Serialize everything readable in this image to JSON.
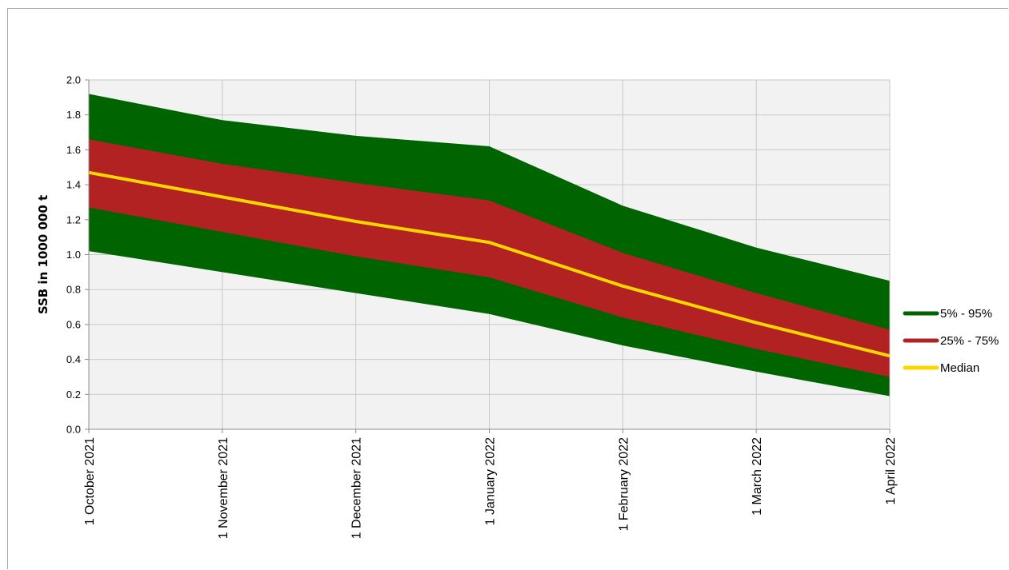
{
  "chart_data": {
    "type": "area",
    "title": "",
    "xlabel": "",
    "ylabel": "SSB in 1000 000 t",
    "ylim": [
      0,
      2.0
    ],
    "yticks": [
      "0.0",
      "0.2",
      "0.4",
      "0.6",
      "0.8",
      "1.0",
      "1.2",
      "1.4",
      "1.6",
      "1.8",
      "2.0"
    ],
    "categories": [
      "1 October 2021",
      "1 November 2021",
      "1 December 2021",
      "1 January 2022",
      "1 February 2022",
      "1 March 2022",
      "1 April 2022"
    ],
    "grid": true,
    "legend_position": "right",
    "series": [
      {
        "name": "5% - 95%",
        "color": "#006400",
        "lower": [
          1.02,
          0.9,
          0.78,
          0.66,
          0.48,
          0.33,
          0.19
        ],
        "upper": [
          1.92,
          1.77,
          1.68,
          1.62,
          1.28,
          1.04,
          0.85
        ]
      },
      {
        "name": "25% - 75%",
        "color": "#b22222",
        "lower": [
          1.27,
          1.13,
          0.99,
          0.87,
          0.64,
          0.46,
          0.3
        ],
        "upper": [
          1.66,
          1.52,
          1.41,
          1.31,
          1.01,
          0.78,
          0.57
        ]
      },
      {
        "name": "Median",
        "color": "#ffd700",
        "values": [
          1.47,
          1.33,
          1.19,
          1.07,
          0.82,
          0.61,
          0.42
        ]
      }
    ]
  }
}
